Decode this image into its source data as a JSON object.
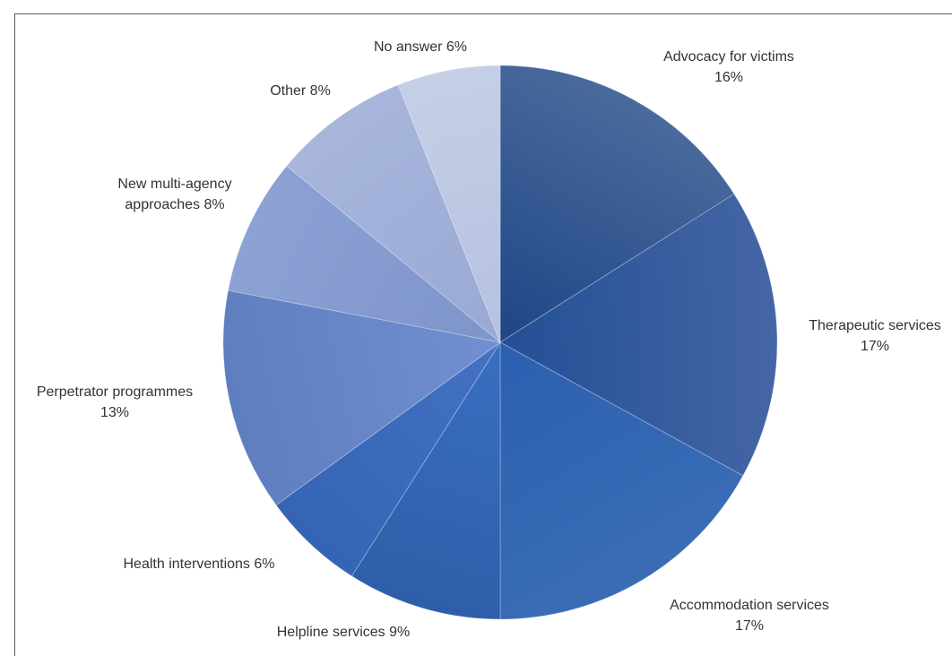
{
  "chart_data": {
    "type": "pie",
    "title": "",
    "start_angle_deg": 0,
    "direction": "clockwise",
    "slices": [
      {
        "name": "Advocacy for victims",
        "value": 16,
        "label_lines": [
          "Advocacy for victims",
          "16%"
        ],
        "color_outer": "#4a6a9d",
        "color_inner": "#1e4585"
      },
      {
        "name": "Therapeutic services",
        "value": 17,
        "label_lines": [
          "Therapeutic services",
          "17%"
        ],
        "color_outer": "#4566a5",
        "color_inner": "#234f96"
      },
      {
        "name": "Accommodation services",
        "value": 17,
        "label_lines": [
          "Accommodation services",
          "17%"
        ],
        "color_outer": "#3a6db5",
        "color_inner": "#2b5fb0"
      },
      {
        "name": "Helpline services",
        "value": 9,
        "label_lines": [
          "Helpline services 9%"
        ],
        "color_outer": "#2d5ea9",
        "color_inner": "#3a6fc0"
      },
      {
        "name": "Health interventions",
        "value": 6,
        "label_lines": [
          "Health interventions 6%"
        ],
        "color_outer": "#3464b3",
        "color_inner": "#4472c4"
      },
      {
        "name": "Perpetrator programmes",
        "value": 13,
        "label_lines": [
          "Perpetrator programmes",
          "13%"
        ],
        "color_outer": "#5e7ec0",
        "color_inner": "#7290d1"
      },
      {
        "name": "New multi-agency approaches",
        "value": 8,
        "label_lines": [
          "New multi-agency",
          "approaches 8%"
        ],
        "color_outer": "#8ca1d4",
        "color_inner": "#7e95ca"
      },
      {
        "name": "Other",
        "value": 8,
        "label_lines": [
          "Other 8%"
        ],
        "color_outer": "#a8b6dc",
        "color_inner": "#98a9d4"
      },
      {
        "name": "No answer",
        "value": 6,
        "label_lines": [
          "No answer 6%"
        ],
        "color_outer": "#c5cfe6",
        "color_inner": "#b4c1e0"
      }
    ],
    "legend": "none",
    "data_labels": "outside"
  }
}
